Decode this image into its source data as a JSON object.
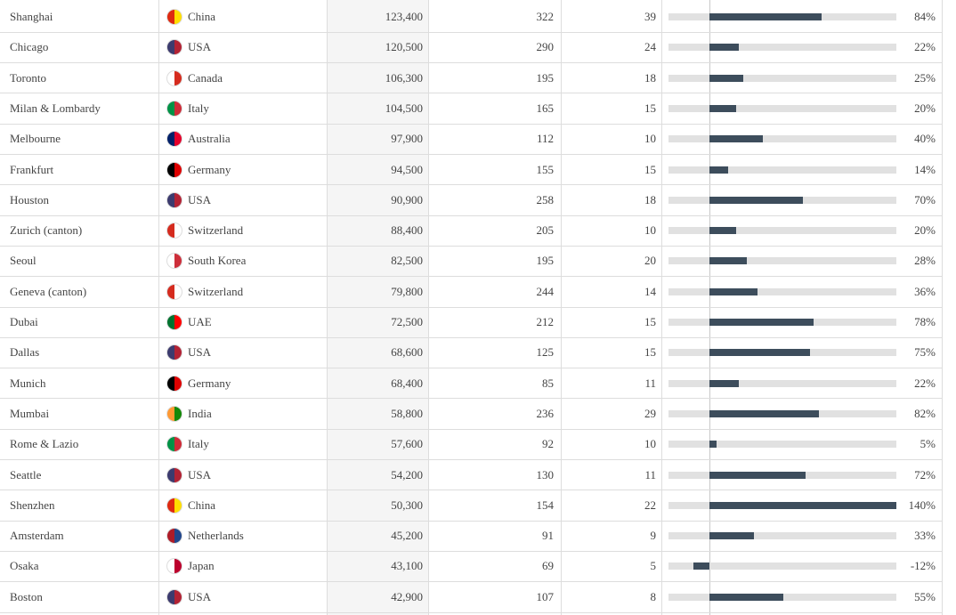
{
  "table": {
    "bar_color": "#3d4d5c",
    "track_color": "#e1e1e1",
    "rows": [
      {
        "city": "Shanghai",
        "country": "China",
        "flag": [
          "#de2910",
          "#ffde00"
        ],
        "wealth": "123,400",
        "c1": 322,
        "c2": 39,
        "growth": {
          "value": 84,
          "label": "84%"
        }
      },
      {
        "city": "Chicago",
        "country": "USA",
        "flag": [
          "#3c3b6e",
          "#b22234"
        ],
        "wealth": "120,500",
        "c1": 290,
        "c2": 24,
        "growth": {
          "value": 22,
          "label": "22%"
        }
      },
      {
        "city": "Toronto",
        "country": "Canada",
        "flag": [
          "#ffffff",
          "#d52b1e"
        ],
        "wealth": "106,300",
        "c1": 195,
        "c2": 18,
        "growth": {
          "value": 25,
          "label": "25%"
        }
      },
      {
        "city": "Milan & Lombardy",
        "country": "Italy",
        "flag": [
          "#009246",
          "#ce2b37"
        ],
        "wealth": "104,500",
        "c1": 165,
        "c2": 15,
        "growth": {
          "value": 20,
          "label": "20%"
        }
      },
      {
        "city": "Melbourne",
        "country": "Australia",
        "flag": [
          "#012169",
          "#e4002b"
        ],
        "wealth": "97,900",
        "c1": 112,
        "c2": 10,
        "growth": {
          "value": 40,
          "label": "40%"
        }
      },
      {
        "city": "Frankfurt",
        "country": "Germany",
        "flag": [
          "#000000",
          "#dd0000"
        ],
        "wealth": "94,500",
        "c1": 155,
        "c2": 15,
        "growth": {
          "value": 14,
          "label": "14%"
        }
      },
      {
        "city": "Houston",
        "country": "USA",
        "flag": [
          "#3c3b6e",
          "#b22234"
        ],
        "wealth": "90,900",
        "c1": 258,
        "c2": 18,
        "growth": {
          "value": 70,
          "label": "70%"
        }
      },
      {
        "city": "Zurich (canton)",
        "country": "Switzerland",
        "flag": [
          "#d52b1e",
          "#ffffff"
        ],
        "wealth": "88,400",
        "c1": 205,
        "c2": 10,
        "growth": {
          "value": 20,
          "label": "20%"
        }
      },
      {
        "city": "Seoul",
        "country": "South Korea",
        "flag": [
          "#ffffff",
          "#cd2e3a"
        ],
        "wealth": "82,500",
        "c1": 195,
        "c2": 20,
        "growth": {
          "value": 28,
          "label": "28%"
        }
      },
      {
        "city": "Geneva (canton)",
        "country": "Switzerland",
        "flag": [
          "#d52b1e",
          "#ffffff"
        ],
        "wealth": "79,800",
        "c1": 244,
        "c2": 14,
        "growth": {
          "value": 36,
          "label": "36%"
        }
      },
      {
        "city": "Dubai",
        "country": "UAE",
        "flag": [
          "#00732f",
          "#ff0000"
        ],
        "wealth": "72,500",
        "c1": 212,
        "c2": 15,
        "growth": {
          "value": 78,
          "label": "78%"
        }
      },
      {
        "city": "Dallas",
        "country": "USA",
        "flag": [
          "#3c3b6e",
          "#b22234"
        ],
        "wealth": "68,600",
        "c1": 125,
        "c2": 15,
        "growth": {
          "value": 75,
          "label": "75%"
        }
      },
      {
        "city": "Munich",
        "country": "Germany",
        "flag": [
          "#000000",
          "#dd0000"
        ],
        "wealth": "68,400",
        "c1": 85,
        "c2": 11,
        "growth": {
          "value": 22,
          "label": "22%"
        }
      },
      {
        "city": "Mumbai",
        "country": "India",
        "flag": [
          "#ff9933",
          "#138808"
        ],
        "wealth": "58,800",
        "c1": 236,
        "c2": 29,
        "growth": {
          "value": 82,
          "label": "82%"
        }
      },
      {
        "city": "Rome & Lazio",
        "country": "Italy",
        "flag": [
          "#009246",
          "#ce2b37"
        ],
        "wealth": "57,600",
        "c1": 92,
        "c2": 10,
        "growth": {
          "value": 5,
          "label": "5%"
        }
      },
      {
        "city": "Seattle",
        "country": "USA",
        "flag": [
          "#3c3b6e",
          "#b22234"
        ],
        "wealth": "54,200",
        "c1": 130,
        "c2": 11,
        "growth": {
          "value": 72,
          "label": "72%"
        }
      },
      {
        "city": "Shenzhen",
        "country": "China",
        "flag": [
          "#de2910",
          "#ffde00"
        ],
        "wealth": "50,300",
        "c1": 154,
        "c2": 22,
        "growth": {
          "value": 140,
          "label": "140%"
        }
      },
      {
        "city": "Amsterdam",
        "country": "Netherlands",
        "flag": [
          "#ae1c28",
          "#21468b"
        ],
        "wealth": "45,200",
        "c1": 91,
        "c2": 9,
        "growth": {
          "value": 33,
          "label": "33%"
        }
      },
      {
        "city": "Osaka",
        "country": "Japan",
        "flag": [
          "#ffffff",
          "#bc002d"
        ],
        "wealth": "43,100",
        "c1": 69,
        "c2": 5,
        "growth": {
          "value": -12,
          "label": "-12%"
        }
      },
      {
        "city": "Boston",
        "country": "USA",
        "flag": [
          "#3c3b6e",
          "#b22234"
        ],
        "wealth": "42,900",
        "c1": 107,
        "c2": 8,
        "growth": {
          "value": 55,
          "label": "55%"
        }
      }
    ]
  }
}
